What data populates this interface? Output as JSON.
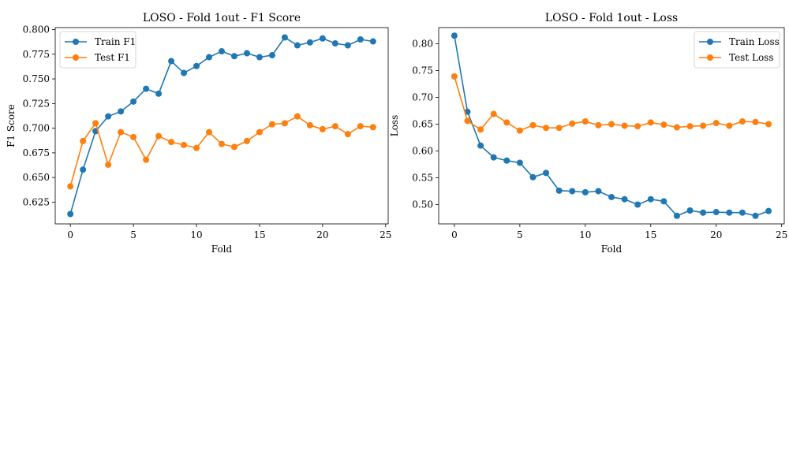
{
  "chart_data": [
    {
      "type": "line",
      "title": "LOSO - Fold 1out - F1 Score",
      "xlabel": "Fold",
      "ylabel": "F1 Score",
      "xlim": [
        -1.2,
        25.2
      ],
      "ylim": [
        0.603,
        0.802
      ],
      "xticks": [
        "0",
        "5",
        "10",
        "15",
        "20",
        "25"
      ],
      "yticks": [
        "0.625",
        "0.650",
        "0.675",
        "0.700",
        "0.725",
        "0.750",
        "0.775",
        "0.800"
      ],
      "grid": false,
      "legend_position": "top-left",
      "x": [
        0,
        1,
        2,
        3,
        4,
        5,
        6,
        7,
        8,
        9,
        10,
        11,
        12,
        13,
        14,
        15,
        16,
        17,
        18,
        19,
        20,
        21,
        22,
        23,
        24
      ],
      "series": [
        {
          "name": "Train F1",
          "color": "#1f77b4",
          "values": [
            0.613,
            0.658,
            0.697,
            0.712,
            0.717,
            0.727,
            0.74,
            0.735,
            0.768,
            0.756,
            0.763,
            0.772,
            0.778,
            0.773,
            0.776,
            0.772,
            0.774,
            0.792,
            0.784,
            0.787,
            0.791,
            0.786,
            0.784,
            0.79,
            0.788
          ]
        },
        {
          "name": "Test F1",
          "color": "#ff7f0e",
          "values": [
            0.641,
            0.687,
            0.705,
            0.663,
            0.696,
            0.691,
            0.668,
            0.692,
            0.686,
            0.683,
            0.68,
            0.696,
            0.684,
            0.681,
            0.687,
            0.696,
            0.704,
            0.705,
            0.712,
            0.703,
            0.699,
            0.702,
            0.694,
            0.702,
            0.701
          ]
        }
      ]
    },
    {
      "type": "line",
      "title": "LOSO - Fold 1out - Loss",
      "xlabel": "Fold",
      "ylabel": "Loss",
      "xlim": [
        -1.2,
        25.2
      ],
      "ylim": [
        0.464,
        0.83
      ],
      "xticks": [
        "0",
        "5",
        "10",
        "15",
        "20",
        "25"
      ],
      "yticks": [
        "0.50",
        "0.55",
        "0.60",
        "0.65",
        "0.70",
        "0.75",
        "0.80"
      ],
      "grid": false,
      "legend_position": "top-right",
      "x": [
        0,
        1,
        2,
        3,
        4,
        5,
        6,
        7,
        8,
        9,
        10,
        11,
        12,
        13,
        14,
        15,
        16,
        17,
        18,
        19,
        20,
        21,
        22,
        23,
        24
      ],
      "series": [
        {
          "name": "Train Loss",
          "color": "#1f77b4",
          "values": [
            0.815,
            0.673,
            0.61,
            0.588,
            0.582,
            0.578,
            0.551,
            0.559,
            0.526,
            0.525,
            0.523,
            0.525,
            0.514,
            0.51,
            0.5,
            0.51,
            0.506,
            0.479,
            0.489,
            0.485,
            0.486,
            0.485,
            0.485,
            0.479,
            0.488
          ]
        },
        {
          "name": "Test Loss",
          "color": "#ff7f0e",
          "values": [
            0.739,
            0.656,
            0.64,
            0.669,
            0.653,
            0.638,
            0.648,
            0.643,
            0.643,
            0.651,
            0.655,
            0.648,
            0.65,
            0.647,
            0.646,
            0.653,
            0.649,
            0.644,
            0.646,
            0.647,
            0.652,
            0.647,
            0.655,
            0.654,
            0.65
          ]
        }
      ]
    }
  ]
}
